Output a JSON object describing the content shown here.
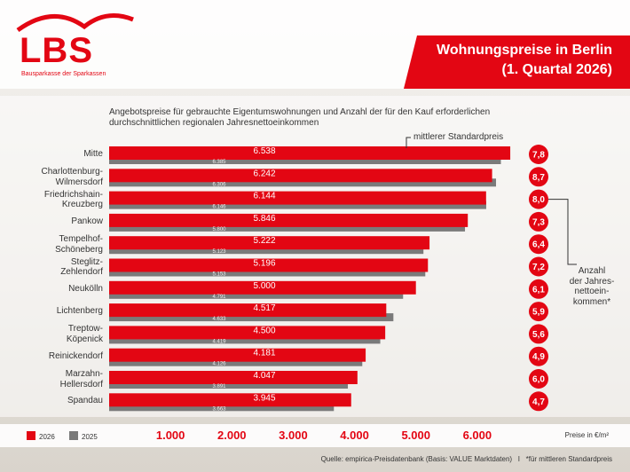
{
  "logo": {
    "name": "LBS",
    "tagline": "Bausparkasse der Sparkassen"
  },
  "chart_data": {
    "type": "bar",
    "orientation": "horizontal",
    "title": "Wohnungspreise in Berlin",
    "subtitle": "(1. Quartal 2026)",
    "description": "Angebotspreise für gebrauchte Eigentumswohnungen und Anzahl der für den Kauf erforderlichen durchschnittlichen regionalen Jahresnettoeinkommen",
    "categories": [
      "Mitte",
      "Charlottenburg-\nWilmersdorf",
      "Friedrichshain-\nKreuzberg",
      "Pankow",
      "Tempelhof-\nSchöneberg",
      "Steglitz-\nZehlendorf",
      "Neukölln",
      "Lichtenberg",
      "Treptow-\nKöpenick",
      "Reinickendorf",
      "Marzahn-\nHellersdorf",
      "Spandau"
    ],
    "series": [
      {
        "name": "2026",
        "color": "#e30613",
        "values": [
          6538,
          6242,
          6144,
          5846,
          5222,
          5196,
          5000,
          4517,
          4500,
          4181,
          4047,
          3945
        ],
        "value_labels": [
          "6.538",
          "6.242",
          "6.144",
          "5.846",
          "5.222",
          "5.196",
          "5.000",
          "4.517",
          "4.500",
          "4.181",
          "4.047",
          "3.945"
        ]
      },
      {
        "name": "2025",
        "color": "#7a7a7a",
        "values": [
          6385,
          6306,
          6146,
          5800,
          5123,
          5153,
          4791,
          4633,
          4419,
          4126,
          3891,
          3663
        ],
        "value_labels": [
          "6.385",
          "6.306",
          "6.146",
          "5.800",
          "5.123",
          "5.153",
          "4.791",
          "4.633",
          "4.419",
          "4.126",
          "3.891",
          "3.663"
        ]
      }
    ],
    "income_ratio": {
      "label": "Anzahl\nder Jahres-\nnettoein-\nkommen*",
      "color": "#e30613",
      "values": [
        7.8,
        8.7,
        8.0,
        7.3,
        6.4,
        7.2,
        6.1,
        5.9,
        5.6,
        4.9,
        6.0,
        4.7
      ],
      "value_labels": [
        "7,8",
        "8,7",
        "8,0",
        "7,3",
        "6,4",
        "7,2",
        "6,1",
        "5,9",
        "5,6",
        "4,9",
        "6,0",
        "4,7"
      ]
    },
    "annotation": "mittlerer Standardpreis",
    "x_label": "Preise in €/m²",
    "xlim": [
      0,
      7000
    ],
    "xticks": [
      {
        "value": 1000,
        "label": "1.000"
      },
      {
        "value": 2000,
        "label": "2.000"
      },
      {
        "value": 3000,
        "label": "3.000"
      },
      {
        "value": 4000,
        "label": "4.000"
      },
      {
        "value": 5000,
        "label": "5.000"
      },
      {
        "value": 6000,
        "label": "6.000"
      }
    ],
    "legend": "bottom-left",
    "source": "Quelle: empirica-Preisdatenbank (Basis: VALUE Marktdaten)   I   *für mittleren Standardpreis"
  }
}
